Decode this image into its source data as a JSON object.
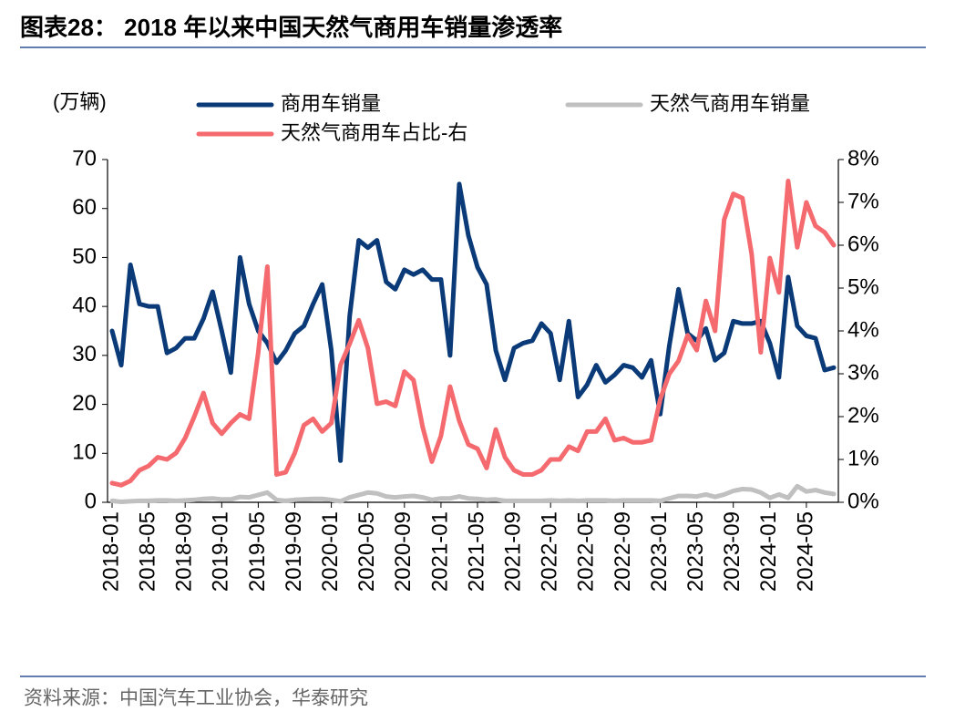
{
  "title": "图表28：  2018 年以来中国天然气商用车销量渗透率",
  "source": "资料来源：中国汽车工业协会，华泰研究",
  "chart_data": {
    "type": "line",
    "y_label": "(万辆)",
    "legend": "top",
    "categories": [
      "2018-01",
      null,
      null,
      null,
      "2018-05",
      null,
      null,
      null,
      "2018-09",
      null,
      null,
      null,
      "2019-01",
      null,
      null,
      null,
      "2019-05",
      null,
      null,
      null,
      "2019-09",
      null,
      null,
      null,
      "2020-01",
      null,
      null,
      null,
      "2020-05",
      null,
      null,
      null,
      "2020-09",
      null,
      null,
      null,
      "2021-01",
      null,
      null,
      null,
      "2021-05",
      null,
      null,
      null,
      "2021-09",
      null,
      null,
      null,
      "2022-01",
      null,
      null,
      null,
      "2022-05",
      null,
      null,
      null,
      "2022-09",
      null,
      null,
      null,
      "2023-01",
      null,
      null,
      null,
      "2023-05",
      null,
      null,
      null,
      "2023-09",
      null,
      null,
      null,
      "2024-01",
      null,
      null,
      null,
      "2024-05",
      null,
      null,
      null
    ],
    "series": [
      {
        "name": "商用车销量",
        "color": "#0b3a78",
        "values": [
          35,
          28,
          48.5,
          40.5,
          40,
          40,
          30.5,
          31.5,
          33.5,
          33.5,
          37.5,
          43,
          35,
          26.5,
          50,
          40.5,
          35,
          32.5,
          28.5,
          31,
          34.5,
          36,
          40.5,
          44.5,
          31,
          8.5,
          38,
          53.5,
          52,
          53.5,
          45,
          43.5,
          47.5,
          46.5,
          47.5,
          45.5,
          45.5,
          30,
          65,
          54.5,
          48,
          44.5,
          31,
          25,
          31.5,
          32.5,
          33,
          36.5,
          34.5,
          25,
          37,
          21.5,
          24,
          28,
          24.5,
          26,
          28,
          27.5,
          25.5,
          29,
          18,
          32,
          43.5,
          34.5,
          33,
          35.5,
          29,
          30.5,
          37,
          36.5,
          36.5,
          37,
          32.5,
          25.5,
          46,
          36,
          34,
          33.5,
          27,
          27.5
        ]
      },
      {
        "name": "天然气商用车销量",
        "color": "#c0c0c0",
        "values": [
          0.3,
          0.1,
          0.2,
          0.3,
          0.3,
          0.4,
          0.4,
          0.3,
          0.4,
          0.5,
          0.7,
          0.8,
          0.6,
          0.6,
          1.1,
          1.0,
          1.5,
          2.0,
          0.5,
          0.3,
          0.5,
          0.6,
          0.7,
          0.7,
          0.5,
          0.2,
          1.0,
          1.5,
          2.0,
          1.8,
          1.2,
          1.0,
          1.2,
          1.3,
          1.0,
          0.5,
          0.8,
          0.8,
          1.2,
          0.8,
          0.7,
          0.5,
          0.6,
          0.3,
          0.3,
          0.3,
          0.3,
          0.3,
          0.4,
          0.3,
          0.4,
          0.3,
          0.4,
          0.4,
          0.4,
          0.3,
          0.4,
          0.4,
          0.4,
          0.4,
          0.3,
          0.8,
          1.3,
          1.3,
          1.2,
          1.6,
          1.1,
          1.6,
          2.3,
          2.7,
          2.6,
          2.0,
          0.9,
          1.6,
          0.9,
          3.3,
          2.2,
          2.5,
          2.0,
          1.7
        ]
      },
      {
        "name": "天然气商用车占比-右",
        "color": "#f46a6e",
        "axis": "y2",
        "values": [
          0.45,
          0.4,
          0.5,
          0.75,
          0.85,
          1.05,
          1.0,
          1.15,
          1.5,
          2.0,
          2.55,
          1.85,
          1.6,
          1.85,
          2.05,
          1.95,
          3.5,
          5.5,
          0.65,
          0.7,
          1.15,
          1.8,
          1.95,
          1.65,
          1.85,
          3.2,
          3.7,
          4.25,
          3.6,
          2.3,
          2.35,
          2.25,
          3.05,
          2.85,
          1.75,
          0.95,
          1.55,
          2.7,
          1.9,
          1.35,
          1.25,
          0.8,
          1.7,
          1.05,
          0.75,
          0.65,
          0.65,
          0.75,
          1.0,
          1.0,
          1.3,
          1.2,
          1.65,
          1.65,
          1.95,
          1.45,
          1.5,
          1.4,
          1.4,
          1.45,
          2.4,
          3.0,
          3.3,
          3.9,
          3.55,
          4.7,
          4.0,
          6.6,
          7.2,
          7.1,
          5.8,
          3.5,
          5.7,
          4.9,
          7.5,
          5.95,
          7.0,
          6.45,
          6.3,
          6.0
        ]
      }
    ],
    "ylim": [
      0,
      70
    ],
    "yticks": [
      0,
      10,
      20,
      30,
      40,
      50,
      60,
      70
    ],
    "y2lim": [
      0,
      8
    ],
    "y2ticks": [
      {
        "value": 0,
        "label": "0%"
      },
      {
        "value": 1,
        "label": "1%"
      },
      {
        "value": 2,
        "label": "2%"
      },
      {
        "value": 3,
        "label": "3%"
      },
      {
        "value": 4,
        "label": "4%"
      },
      {
        "value": 5,
        "label": "5%"
      },
      {
        "value": 6,
        "label": "6%"
      },
      {
        "value": 7,
        "label": "7%"
      },
      {
        "value": 8,
        "label": "8%"
      }
    ]
  }
}
